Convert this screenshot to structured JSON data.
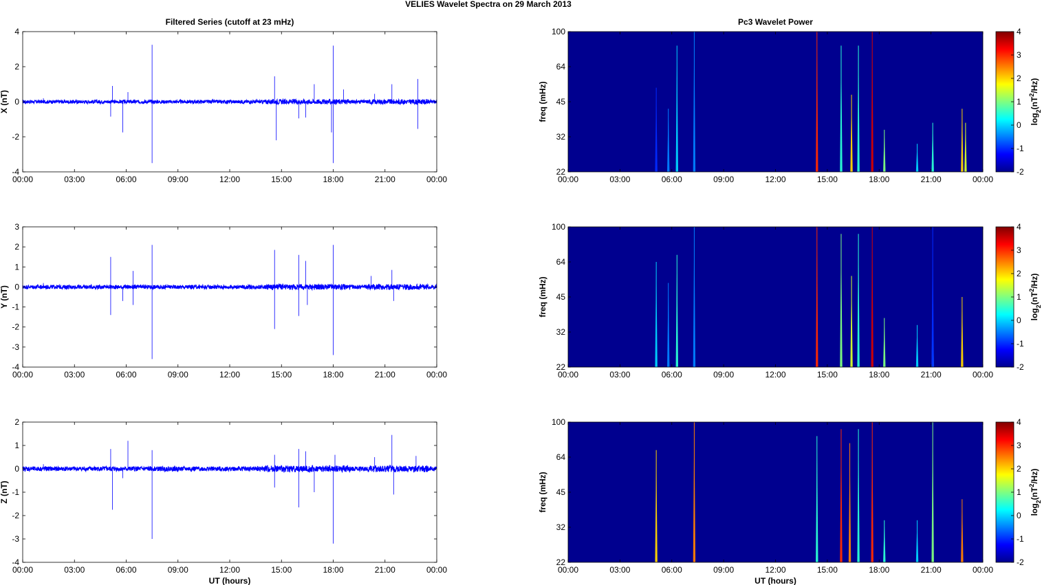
{
  "page_title": "VELIES Wavelet Spectra on 29 March     2013",
  "colors": {
    "trace": "#0000ff",
    "spectrogram_background": "#00008f",
    "axes": "#000000"
  },
  "chart_data": [
    {
      "type": "line",
      "title": "Filtered Series (cutoff at 23 mHz)",
      "ylabel": "X (nT)",
      "xlabel": "",
      "x_ticks": [
        "00:00",
        "03:00",
        "06:00",
        "09:00",
        "12:00",
        "15:00",
        "18:00",
        "21:00",
        "00:00"
      ],
      "y_ticks": [
        "4",
        "2",
        "0",
        "-2",
        "-4"
      ],
      "xlim_hours": [
        0,
        24
      ],
      "ylim": [
        -4,
        4
      ],
      "baseline_noise_nT": 0.1,
      "series": [
        {
          "color": "#0000ff",
          "spikes": [
            [
              1.2,
              0.2
            ],
            [
              5.1,
              -0.85
            ],
            [
              5.2,
              0.9
            ],
            [
              5.8,
              -1.75
            ],
            [
              6.1,
              0.55
            ],
            [
              7.5,
              3.25
            ],
            [
              7.5,
              -3.5
            ],
            [
              14.6,
              1.45
            ],
            [
              14.7,
              -2.2
            ],
            [
              16.0,
              -0.95
            ],
            [
              16.4,
              -0.9
            ],
            [
              16.9,
              1.0
            ],
            [
              17.9,
              -1.75
            ],
            [
              18.0,
              3.2
            ],
            [
              18.0,
              -3.5
            ],
            [
              18.6,
              0.7
            ],
            [
              20.4,
              0.45
            ],
            [
              21.4,
              1.0
            ],
            [
              22.9,
              1.3
            ],
            [
              22.9,
              -1.55
            ]
          ]
        }
      ]
    },
    {
      "type": "heatmap",
      "title": "Pc3 Wavelet Power",
      "ylabel": "freq (mHz)",
      "xlabel": "",
      "x_ticks": [
        "00:00",
        "03:00",
        "06:00",
        "09:00",
        "12:00",
        "15:00",
        "18:00",
        "21:00",
        "00:00"
      ],
      "y_ticks": [
        "100",
        "64",
        "45",
        "32",
        "22"
      ],
      "colorbar_label": "log2(nT2/Hz)",
      "colorbar_ticks": [
        "4",
        "3",
        "2",
        "1",
        "0",
        "-1",
        "-2"
      ],
      "clim": [
        -2,
        4
      ],
      "events": [
        [
          5.1,
          0.6,
          -1
        ],
        [
          5.8,
          0.45,
          -0.5
        ],
        [
          6.3,
          0.9,
          0
        ],
        [
          7.3,
          1.0,
          -0.5
        ],
        [
          14.4,
          1.0,
          3
        ],
        [
          15.8,
          0.9,
          0.5
        ],
        [
          16.4,
          0.55,
          2
        ],
        [
          16.8,
          0.9,
          0.5
        ],
        [
          17.6,
          1.0,
          3.5
        ],
        [
          18.3,
          0.3,
          1
        ],
        [
          20.2,
          0.2,
          0
        ],
        [
          21.1,
          0.35,
          0.5
        ],
        [
          22.8,
          0.45,
          2
        ],
        [
          23.0,
          0.35,
          1.5
        ]
      ]
    },
    {
      "type": "line",
      "title": "",
      "ylabel": "Y (nT)",
      "xlabel": "",
      "x_ticks": [
        "00:00",
        "03:00",
        "06:00",
        "09:00",
        "12:00",
        "15:00",
        "18:00",
        "21:00",
        "00:00"
      ],
      "y_ticks": [
        "3",
        "2",
        "1",
        "0",
        "-1",
        "-2",
        "-3",
        "-4"
      ],
      "xlim_hours": [
        0,
        24
      ],
      "ylim": [
        -4,
        3
      ],
      "baseline_noise_nT": 0.1,
      "series": [
        {
          "color": "#0000ff",
          "spikes": [
            [
              1.2,
              0.2
            ],
            [
              5.1,
              1.5
            ],
            [
              5.1,
              -1.4
            ],
            [
              5.8,
              -0.7
            ],
            [
              6.4,
              0.8
            ],
            [
              6.4,
              -0.9
            ],
            [
              7.5,
              2.1
            ],
            [
              7.5,
              -3.6
            ],
            [
              14.6,
              1.85
            ],
            [
              14.6,
              -2.1
            ],
            [
              16.0,
              1.6
            ],
            [
              16.0,
              -1.45
            ],
            [
              16.4,
              1.3
            ],
            [
              16.5,
              -0.9
            ],
            [
              18.0,
              2.1
            ],
            [
              18.0,
              -3.4
            ],
            [
              20.2,
              0.55
            ],
            [
              21.4,
              0.85
            ],
            [
              21.5,
              -0.7
            ]
          ]
        }
      ]
    },
    {
      "type": "heatmap",
      "title": "",
      "ylabel": "freq (mHz)",
      "xlabel": "",
      "x_ticks": [
        "00:00",
        "03:00",
        "06:00",
        "09:00",
        "12:00",
        "15:00",
        "18:00",
        "21:00",
        "00:00"
      ],
      "y_ticks": [
        "100",
        "64",
        "45",
        "32",
        "22"
      ],
      "colorbar_label": "log2(nT2/Hz)",
      "colorbar_ticks": [
        "4",
        "3",
        "2",
        "1",
        "0",
        "-1",
        "-2"
      ],
      "clim": [
        -2,
        4
      ],
      "events": [
        [
          5.1,
          0.75,
          0
        ],
        [
          5.8,
          0.6,
          -0.5
        ],
        [
          6.3,
          0.8,
          0.5
        ],
        [
          7.3,
          1.0,
          -0.5
        ],
        [
          14.4,
          1.0,
          3
        ],
        [
          15.8,
          0.95,
          1
        ],
        [
          16.4,
          0.65,
          1.5
        ],
        [
          16.8,
          0.95,
          0.5
        ],
        [
          17.6,
          1.0,
          3.5
        ],
        [
          18.3,
          0.35,
          1
        ],
        [
          20.2,
          0.3,
          0
        ],
        [
          21.1,
          0.45,
          0.5
        ],
        [
          21.1,
          1.0,
          -1
        ],
        [
          22.8,
          0.5,
          2
        ]
      ]
    },
    {
      "type": "line",
      "title": "",
      "ylabel": "Z (nT)",
      "xlabel": "UT (hours)",
      "x_ticks": [
        "00:00",
        "03:00",
        "06:00",
        "09:00",
        "12:00",
        "15:00",
        "18:00",
        "21:00",
        "00:00"
      ],
      "y_ticks": [
        "2",
        "1",
        "0",
        "-1",
        "-2",
        "-3",
        "-4"
      ],
      "xlim_hours": [
        0,
        24
      ],
      "ylim": [
        -4,
        2
      ],
      "baseline_noise_nT": 0.1,
      "series": [
        {
          "color": "#0000ff",
          "spikes": [
            [
              1.2,
              0.2
            ],
            [
              5.1,
              0.85
            ],
            [
              5.2,
              -1.75
            ],
            [
              5.8,
              -0.4
            ],
            [
              6.1,
              1.2
            ],
            [
              7.5,
              0.8
            ],
            [
              7.5,
              -3.0
            ],
            [
              14.6,
              0.6
            ],
            [
              14.6,
              -0.8
            ],
            [
              16.0,
              0.85
            ],
            [
              16.0,
              -1.65
            ],
            [
              16.4,
              0.75
            ],
            [
              16.9,
              -1.0
            ],
            [
              18.0,
              -3.2
            ],
            [
              18.1,
              0.6
            ],
            [
              20.4,
              0.5
            ],
            [
              21.4,
              1.45
            ],
            [
              21.5,
              -1.1
            ],
            [
              22.8,
              0.55
            ]
          ]
        }
      ]
    },
    {
      "type": "heatmap",
      "title": "",
      "ylabel": "freq (mHz)",
      "xlabel": "UT (hours)",
      "x_ticks": [
        "00:00",
        "03:00",
        "06:00",
        "09:00",
        "12:00",
        "15:00",
        "18:00",
        "21:00",
        "00:00"
      ],
      "y_ticks": [
        "100",
        "64",
        "45",
        "32",
        "22"
      ],
      "colorbar_label": "log2(nT2/Hz)",
      "colorbar_ticks": [
        "4",
        "3",
        "2",
        "1",
        "0",
        "-1",
        "-2"
      ],
      "clim": [
        -2,
        4
      ],
      "events": [
        [
          5.1,
          0.8,
          2
        ],
        [
          7.3,
          1.0,
          2.5
        ],
        [
          14.4,
          0.9,
          0.5
        ],
        [
          15.8,
          0.95,
          3
        ],
        [
          16.3,
          0.85,
          2.5
        ],
        [
          16.8,
          0.95,
          0.5
        ],
        [
          17.6,
          1.0,
          3
        ],
        [
          18.3,
          0.3,
          0.5
        ],
        [
          20.2,
          0.3,
          0
        ],
        [
          21.1,
          1.0,
          1
        ],
        [
          22.8,
          0.45,
          2.5
        ]
      ]
    }
  ]
}
